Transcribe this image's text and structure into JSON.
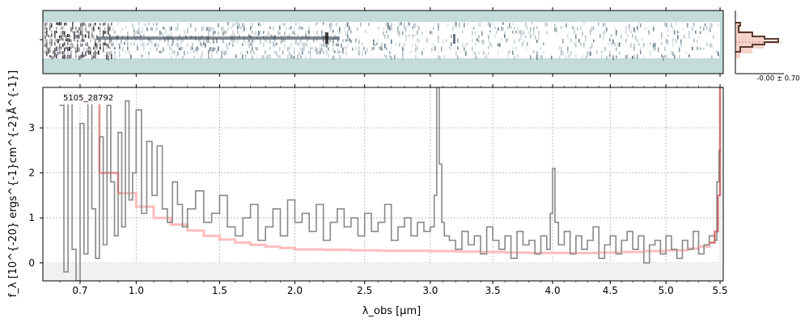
{
  "chart_data": {
    "type": "line",
    "object_label": "5105_28792",
    "ylabel": "f_λ [10^{-20} ergs^{-1}cm^{-2}Å^{-1}]",
    "xlabel": "λ_obs [μm]",
    "x_tick_labels": [
      "0.7",
      "1.0",
      "1.5",
      "2.0",
      "2.5",
      "3.0",
      "3.5",
      "4.0",
      "4.5",
      "5.0",
      "5.5"
    ],
    "y_tick_labels": [
      "0",
      "1",
      "2",
      "3"
    ],
    "ylim": [
      -0.4,
      3.9
    ],
    "grid": true,
    "inset_label": "-0.00 ± 0.70",
    "colors": {
      "spectrum": "#888888",
      "model": "#ffb3b3",
      "model_edges": "#c06060",
      "frame_bg": "#c3dbd9",
      "inset_hist": "#5a3a2e",
      "inset_fill": "#f3c8be"
    },
    "series": [
      {
        "role": "spectrum",
        "x": [
          0.6,
          0.62,
          0.64,
          0.66,
          0.68,
          0.7,
          0.72,
          0.74,
          0.76,
          0.78,
          0.8,
          0.82,
          0.84,
          0.86,
          0.88,
          0.9,
          0.92,
          0.94,
          0.96,
          0.98,
          1.0,
          1.03,
          1.06,
          1.09,
          1.12,
          1.15,
          1.18,
          1.21,
          1.24,
          1.27,
          1.3,
          1.35,
          1.4,
          1.45,
          1.5,
          1.55,
          1.6,
          1.65,
          1.7,
          1.75,
          1.8,
          1.85,
          1.9,
          1.95,
          2.0,
          2.05,
          2.1,
          2.15,
          2.2,
          2.25,
          2.3,
          2.35,
          2.4,
          2.45,
          2.5,
          2.55,
          2.6,
          2.65,
          2.7,
          2.75,
          2.8,
          2.85,
          2.9,
          2.95,
          3.0,
          3.03,
          3.05,
          3.07,
          3.09,
          3.11,
          3.15,
          3.2,
          3.25,
          3.3,
          3.35,
          3.4,
          3.45,
          3.5,
          3.55,
          3.6,
          3.65,
          3.7,
          3.75,
          3.8,
          3.85,
          3.9,
          3.95,
          3.98,
          4.0,
          4.02,
          4.05,
          4.1,
          4.15,
          4.2,
          4.25,
          4.3,
          4.35,
          4.4,
          4.45,
          4.5,
          4.55,
          4.6,
          4.65,
          4.7,
          4.75,
          4.8,
          4.85,
          4.9,
          4.95,
          5.0,
          5.05,
          5.1,
          5.15,
          5.2,
          5.25,
          5.3,
          5.35,
          5.4,
          5.45,
          5.47,
          5.49
        ],
        "y": [
          3.5,
          -0.2,
          3.8,
          0.3,
          -0.4,
          3.1,
          0.2,
          3.7,
          1.2,
          0.1,
          2.8,
          0.4,
          3.5,
          1.8,
          0.6,
          2.9,
          0.8,
          3.6,
          1.4,
          2.0,
          3.4,
          1.1,
          2.7,
          1.5,
          2.6,
          1.2,
          0.9,
          1.8,
          1.3,
          0.8,
          1.2,
          1.6,
          0.9,
          1.1,
          1.5,
          0.8,
          0.6,
          1.0,
          1.3,
          0.5,
          0.8,
          1.2,
          0.6,
          1.4,
          0.9,
          1.1,
          0.7,
          1.3,
          0.5,
          0.9,
          1.2,
          0.8,
          1.0,
          0.6,
          1.1,
          0.7,
          0.9,
          1.3,
          0.5,
          0.8,
          1.0,
          0.6,
          0.9,
          0.7,
          0.8,
          1.5,
          3.9,
          2.2,
          0.9,
          0.6,
          0.5,
          0.3,
          0.7,
          0.4,
          0.6,
          0.2,
          0.8,
          0.5,
          0.3,
          0.6,
          0.1,
          0.7,
          0.4,
          0.5,
          0.2,
          0.6,
          0.3,
          1.1,
          2.1,
          0.9,
          0.4,
          0.7,
          0.2,
          0.6,
          0.3,
          0.5,
          0.8,
          0.1,
          0.4,
          0.6,
          0.2,
          0.5,
          0.7,
          0.3,
          0.6,
          0.0,
          0.4,
          0.5,
          0.2,
          0.6,
          0.3,
          0.1,
          0.5,
          0.3,
          0.7,
          0.2,
          0.4,
          0.6,
          0.5,
          1.8,
          2.5
        ]
      },
      {
        "role": "model",
        "x": [
          0.7,
          0.8,
          0.9,
          1.0,
          1.1,
          1.2,
          1.3,
          1.4,
          1.5,
          1.6,
          1.7,
          1.8,
          1.9,
          2.0,
          2.2,
          2.4,
          2.6,
          2.8,
          3.0,
          3.2,
          3.4,
          3.6,
          3.8,
          4.0,
          4.2,
          4.4,
          4.6,
          4.8,
          5.0,
          5.2,
          5.3,
          5.4,
          5.45,
          5.48,
          5.5
        ],
        "y": [
          3.6,
          2.0,
          1.55,
          1.25,
          1.0,
          0.85,
          0.72,
          0.6,
          0.52,
          0.45,
          0.4,
          0.36,
          0.33,
          0.3,
          0.29,
          0.28,
          0.27,
          0.27,
          0.26,
          0.25,
          0.24,
          0.23,
          0.22,
          0.22,
          0.22,
          0.23,
          0.24,
          0.26,
          0.28,
          0.32,
          0.36,
          0.45,
          0.7,
          1.5,
          3.9
        ]
      }
    ]
  }
}
